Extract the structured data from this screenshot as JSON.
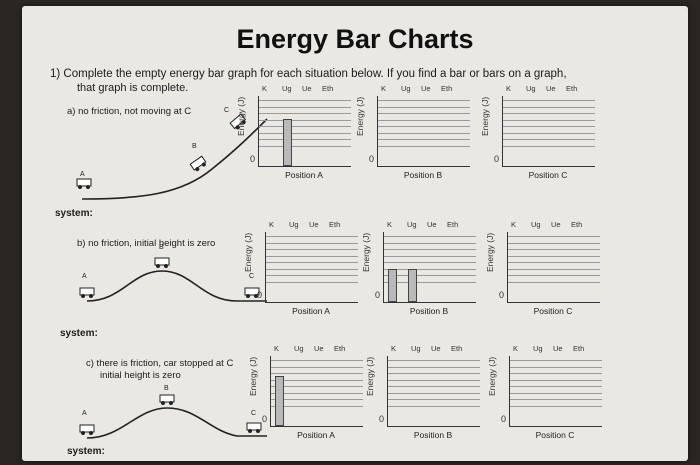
{
  "title": "Energy Bar Charts",
  "instruction_line1": "1) Complete the empty energy bar graph for each situation below. If you find a bar or bars on a graph,",
  "instruction_line2": "that graph is complete.",
  "energy_columns": [
    "K",
    "Ug",
    "Ue",
    "Eth"
  ],
  "y_axis_label": "Energy (J)",
  "zero_label": "0",
  "system_label": "system:",
  "situations": [
    {
      "description": [
        "a) no friction, not moving at C"
      ],
      "scene_labels": [
        "A",
        "B",
        "C"
      ],
      "charts": [
        {
          "position": "Position A",
          "bars": [
            0,
            0.8,
            0,
            0
          ]
        },
        {
          "position": "Position B",
          "bars": [
            0,
            0,
            0,
            0
          ]
        },
        {
          "position": "Position C",
          "bars": [
            0,
            0,
            0,
            0
          ]
        }
      ]
    },
    {
      "description": [
        "b) no friction, initial height is zero"
      ],
      "scene_labels": [
        "A",
        "B",
        "C"
      ],
      "charts": [
        {
          "position": "Position A",
          "bars": [
            0,
            0,
            0,
            0
          ]
        },
        {
          "position": "Position B",
          "bars": [
            0.55,
            0.55,
            0,
            0
          ]
        },
        {
          "position": "Position C",
          "bars": [
            0,
            0,
            0,
            0
          ]
        }
      ]
    },
    {
      "description": [
        "c) there is friction, car stopped at C",
        "initial height is zero"
      ],
      "scene_labels": [
        "A",
        "B",
        "C"
      ],
      "charts": [
        {
          "position": "Position A",
          "bars": [
            0.85,
            0,
            0,
            0
          ]
        },
        {
          "position": "Position B",
          "bars": [
            0,
            0,
            0,
            0
          ]
        },
        {
          "position": "Position C",
          "bars": [
            0,
            0,
            0,
            0
          ]
        }
      ]
    }
  ]
}
